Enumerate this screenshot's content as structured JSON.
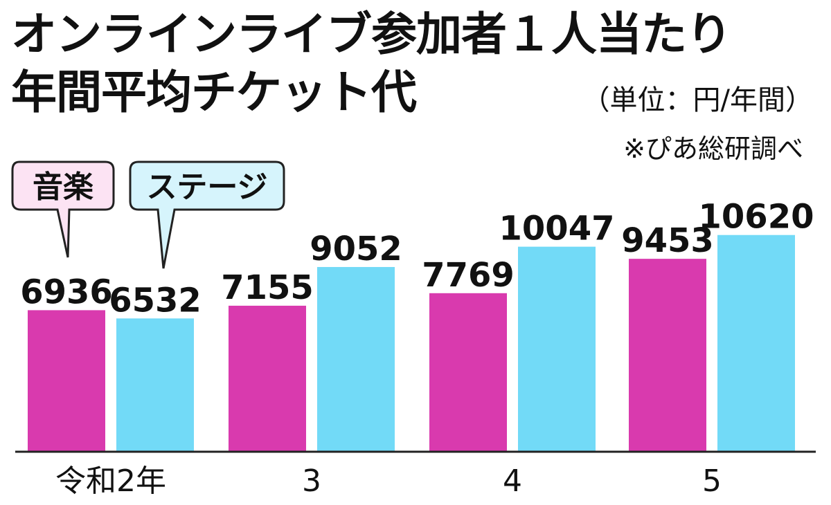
{
  "header": {
    "title_line1": "オンラインライブ参加者１人当たり",
    "title_line2": "年間平均チケット代",
    "unit": "（単位：円/年間）",
    "source": "※ぴあ総研調べ"
  },
  "colors": {
    "music": "#D93AAE",
    "stage": "#72DAF7",
    "music_legend_bg": "#FCE3F3",
    "stage_legend_bg": "#D6F4FC"
  },
  "chart_data": {
    "type": "bar",
    "title": "オンラインライブ参加者１人当たり 年間平均チケット代",
    "ylabel": "",
    "xlabel": "",
    "unit": "（単位：円/年間）",
    "categories": [
      "令和2年",
      "3",
      "4",
      "5"
    ],
    "series": [
      {
        "name": "音楽",
        "values": [
          6936,
          7155,
          7769,
          9453
        ]
      },
      {
        "name": "ステージ",
        "values": [
          6532,
          9052,
          10047,
          10620
        ]
      }
    ],
    "ylim": [
      0,
      15000
    ],
    "grid": false,
    "legend": "callout-top-left"
  }
}
